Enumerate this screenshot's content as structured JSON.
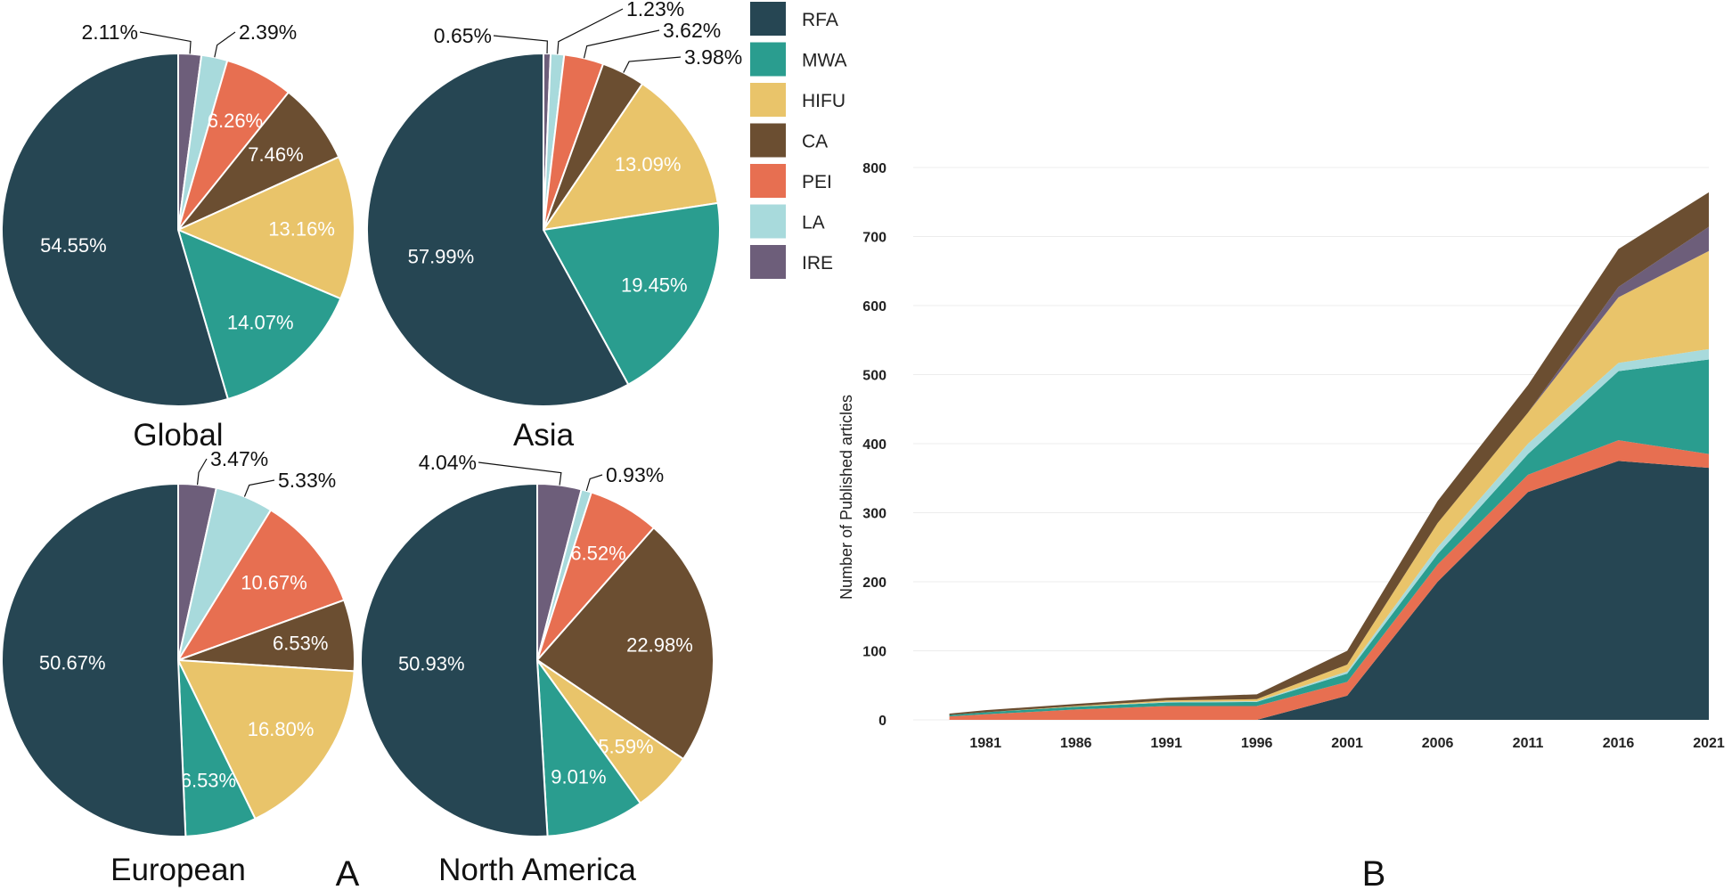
{
  "colors": {
    "RFA": "#264653",
    "MWA": "#2a9d8f",
    "HIFU": "#e9c46a",
    "CA": "#6b4e31",
    "PEI": "#e76f51",
    "LA": "#a8dadc",
    "IRE": "#6d5e7a"
  },
  "panel_labels": {
    "a": "A",
    "b": "B"
  },
  "legend": [
    "RFA",
    "MWA",
    "HIFU",
    "CA",
    "PEI",
    "LA",
    "IRE"
  ],
  "chart_data": [
    {
      "type": "pie",
      "title": "Global",
      "categories": [
        "IRE",
        "LA",
        "PEI",
        "CA",
        "HIFU",
        "MWA",
        "RFA"
      ],
      "values": [
        2.11,
        2.39,
        6.26,
        7.46,
        13.16,
        14.07,
        54.55
      ],
      "labels": [
        "2.11%",
        "2.39%",
        "6.26%",
        "7.46%",
        "13.16%",
        "14.07%",
        "54.55%"
      ]
    },
    {
      "type": "pie",
      "title": "Asia",
      "categories": [
        "IRE",
        "LA",
        "PEI",
        "CA",
        "HIFU",
        "MWA",
        "RFA"
      ],
      "values": [
        0.65,
        1.23,
        3.62,
        3.98,
        13.09,
        19.45,
        57.99
      ],
      "labels": [
        "0.65%",
        "1.23%",
        "3.62%",
        "3.98%",
        "13.09%",
        "19.45%",
        "57.99%"
      ]
    },
    {
      "type": "pie",
      "title": "European",
      "categories": [
        "IRE",
        "LA",
        "PEI",
        "CA",
        "HIFU",
        "MWA",
        "RFA"
      ],
      "values": [
        3.47,
        5.33,
        10.67,
        6.53,
        16.8,
        6.53,
        50.67
      ],
      "labels": [
        "3.47%",
        "5.33%",
        "10.67%",
        "6.53%",
        "16.80%",
        "6.53%",
        "50.67%"
      ]
    },
    {
      "type": "pie",
      "title": "North America",
      "categories": [
        "IRE",
        "LA",
        "PEI",
        "CA",
        "HIFU",
        "MWA",
        "RFA"
      ],
      "values": [
        4.04,
        0.93,
        6.52,
        22.98,
        5.59,
        9.01,
        50.93
      ],
      "labels": [
        "4.04%",
        "0.93%",
        "6.52%",
        "22.98%",
        "5.59%",
        "9.01%",
        "50.93%"
      ]
    },
    {
      "type": "area",
      "stacked": true,
      "ylabel": "Number of Published articles",
      "xlabel": "",
      "x": [
        1979,
        1981,
        1986,
        1991,
        1996,
        2001,
        2006,
        2011,
        2016,
        2021
      ],
      "x_ticks": [
        "1981",
        "1986",
        "1991",
        "1996",
        "2001",
        "2006",
        "2011",
        "2016",
        "2021"
      ],
      "y_ticks": [
        "0",
        "100",
        "200",
        "300",
        "400",
        "500",
        "600",
        "700",
        "800"
      ],
      "ylim": [
        0,
        800
      ],
      "xlim": [
        1977,
        2021
      ],
      "grid": true,
      "series": [
        {
          "name": "RFA",
          "values": [
            0,
            0,
            0,
            0,
            0,
            35,
            200,
            330,
            375,
            365
          ]
        },
        {
          "name": "PEI",
          "values": [
            5,
            8,
            15,
            20,
            20,
            20,
            25,
            25,
            30,
            20
          ]
        },
        {
          "name": "MWA",
          "values": [
            2,
            3,
            4,
            5,
            6,
            12,
            15,
            30,
            100,
            137
          ]
        },
        {
          "name": "LA",
          "values": [
            0,
            0,
            0,
            1,
            1,
            3,
            10,
            15,
            12,
            15
          ]
        },
        {
          "name": "HIFU",
          "values": [
            0,
            0,
            1,
            2,
            3,
            10,
            35,
            45,
            95,
            142
          ]
        },
        {
          "name": "IRE",
          "values": [
            0,
            0,
            0,
            0,
            0,
            0,
            0,
            0,
            15,
            35
          ]
        },
        {
          "name": "CA",
          "values": [
            2,
            3,
            3,
            4,
            7,
            20,
            32,
            40,
            55,
            50
          ]
        }
      ]
    }
  ]
}
